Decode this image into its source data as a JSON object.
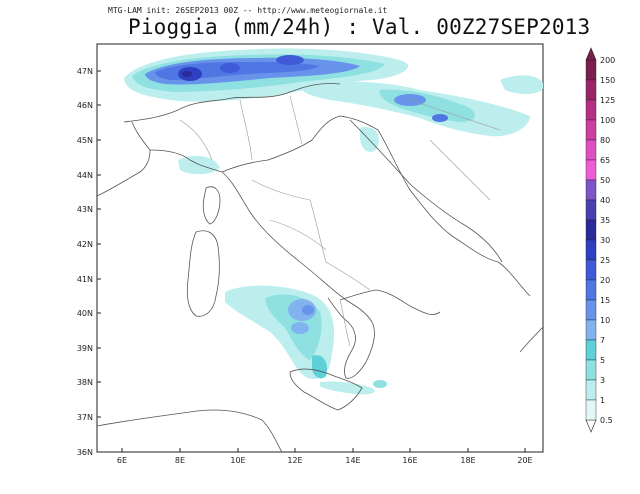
{
  "header": {
    "init_text": "MTG-LAM init: 26SEP2013 00Z -- http://www.meteogiornale.it",
    "title": "Pioggia (mm/24h) : Val. 00Z27SEP2013"
  },
  "map": {
    "lat_labels": [
      "47N",
      "46N",
      "45N",
      "44N",
      "43N",
      "42N",
      "41N",
      "40N",
      "39N",
      "38N",
      "37N",
      "36N"
    ],
    "lon_labels": [
      "6E",
      "8E",
      "10E",
      "12E",
      "14E",
      "16E",
      "18E",
      "20E"
    ]
  },
  "colorbar": {
    "levels": [
      "200",
      "150",
      "125",
      "100",
      "80",
      "65",
      "50",
      "40",
      "35",
      "30",
      "25",
      "20",
      "15",
      "10",
      "7",
      "5",
      "3",
      "1",
      "0.5"
    ],
    "colors": [
      "#7a1f4e",
      "#9b2468",
      "#b52f86",
      "#cc3fa0",
      "#e04fc2",
      "#ee5cd6",
      "#7d55c8",
      "#4a3fb0",
      "#2b2a9a",
      "#2e3fc2",
      "#3e5ad6",
      "#4f76e3",
      "#6794ea",
      "#82b3ef",
      "#5fd0d8",
      "#8fe0e0",
      "#bdeeee",
      "#e3f7f7"
    ]
  }
}
